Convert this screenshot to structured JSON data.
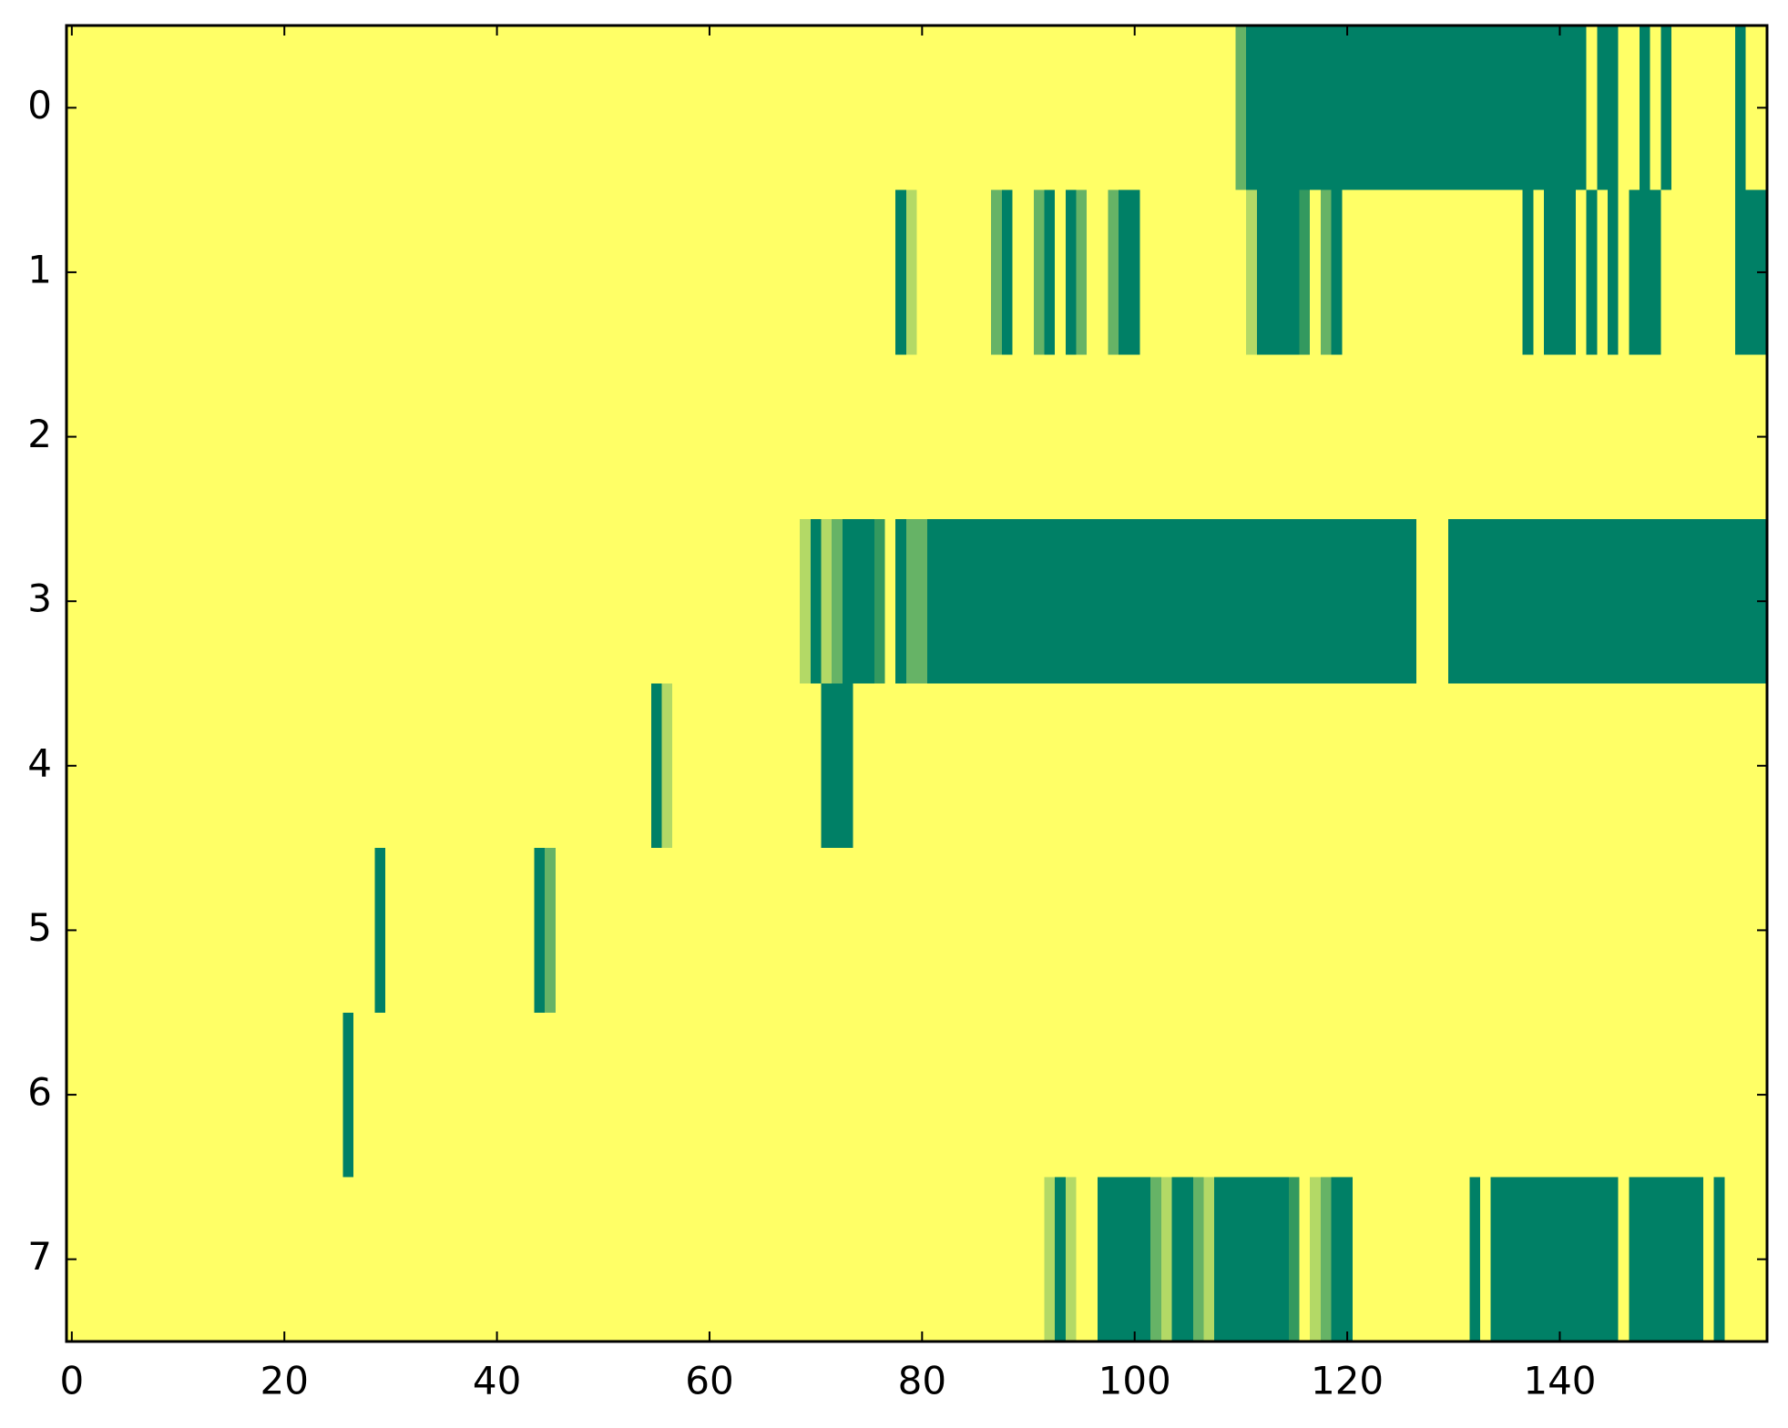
{
  "chart_data": {
    "type": "heatmap",
    "title": "",
    "xlabel": "",
    "ylabel": "",
    "n_cols": 160,
    "n_rows": 8,
    "xlim": [
      -0.5,
      159.5
    ],
    "ylim": [
      7.5,
      -0.5
    ],
    "x_ticks": [
      0,
      20,
      40,
      60,
      80,
      100,
      120,
      140
    ],
    "x_tick_labels": [
      "0",
      "20",
      "40",
      "60",
      "80",
      "100",
      "120",
      "140"
    ],
    "y_ticks": [
      0,
      1,
      2,
      3,
      4,
      5,
      6,
      7
    ],
    "y_tick_labels": [
      "0",
      "1",
      "2",
      "3",
      "4",
      "5",
      "6",
      "7"
    ],
    "colormap": "summer_r",
    "value_range": [
      0,
      1
    ],
    "colors": {
      "background": "#ffff66",
      "high": "#008066",
      "mid": "#66b366",
      "low": "#b3d966"
    },
    "grid": false,
    "legend": "none",
    "segments_note": "nonzero cells per row as [start_col, end_col, value]; all other cells = 0",
    "rows": [
      [
        [
          110,
          110,
          0.6
        ],
        [
          111,
          142,
          1.0
        ],
        [
          144,
          145,
          1.0
        ],
        [
          148,
          148,
          1.0
        ],
        [
          150,
          150,
          1.0
        ],
        [
          157,
          157,
          1.0
        ]
      ],
      [
        [
          78,
          78,
          1.0
        ],
        [
          79,
          79,
          0.3
        ],
        [
          87,
          87,
          0.6
        ],
        [
          88,
          88,
          1.0
        ],
        [
          91,
          91,
          0.6
        ],
        [
          92,
          92,
          1.0
        ],
        [
          94,
          94,
          1.0
        ],
        [
          95,
          95,
          0.6
        ],
        [
          98,
          98,
          0.6
        ],
        [
          99,
          100,
          1.0
        ],
        [
          111,
          111,
          0.3
        ],
        [
          112,
          115,
          1.0
        ],
        [
          116,
          116,
          0.8
        ],
        [
          118,
          118,
          0.6
        ],
        [
          119,
          119,
          1.0
        ],
        [
          137,
          137,
          1.0
        ],
        [
          139,
          141,
          1.0
        ],
        [
          143,
          143,
          1.0
        ],
        [
          145,
          145,
          1.0
        ],
        [
          147,
          149,
          1.0
        ],
        [
          157,
          159,
          1.0
        ]
      ],
      [],
      [
        [
          69,
          69,
          0.3
        ],
        [
          70,
          70,
          1.0
        ],
        [
          71,
          71,
          0.3
        ],
        [
          72,
          72,
          0.6
        ],
        [
          73,
          75,
          1.0
        ],
        [
          76,
          76,
          0.8
        ],
        [
          78,
          78,
          1.0
        ],
        [
          79,
          80,
          0.6
        ],
        [
          81,
          126,
          1.0
        ],
        [
          130,
          159,
          1.0
        ]
      ],
      [
        [
          55,
          55,
          1.0
        ],
        [
          56,
          56,
          0.3
        ],
        [
          71,
          71,
          1.0
        ],
        [
          72,
          72,
          1.0
        ],
        [
          73,
          73,
          1.0
        ]
      ],
      [
        [
          29,
          29,
          1.0
        ],
        [
          44,
          44,
          1.0
        ],
        [
          45,
          45,
          0.6
        ]
      ],
      [
        [
          26,
          26,
          1.0
        ]
      ],
      [
        [
          92,
          92,
          0.3
        ],
        [
          93,
          93,
          1.0
        ],
        [
          94,
          94,
          0.3
        ],
        [
          97,
          101,
          1.0
        ],
        [
          102,
          102,
          0.6
        ],
        [
          103,
          103,
          0.3
        ],
        [
          104,
          105,
          1.0
        ],
        [
          106,
          106,
          0.6
        ],
        [
          107,
          107,
          0.3
        ],
        [
          108,
          114,
          1.0
        ],
        [
          115,
          115,
          0.8
        ],
        [
          117,
          117,
          0.3
        ],
        [
          118,
          118,
          0.6
        ],
        [
          119,
          120,
          1.0
        ],
        [
          132,
          132,
          1.0
        ],
        [
          134,
          145,
          1.0
        ],
        [
          147,
          153,
          1.0
        ],
        [
          155,
          155,
          1.0
        ]
      ]
    ]
  }
}
